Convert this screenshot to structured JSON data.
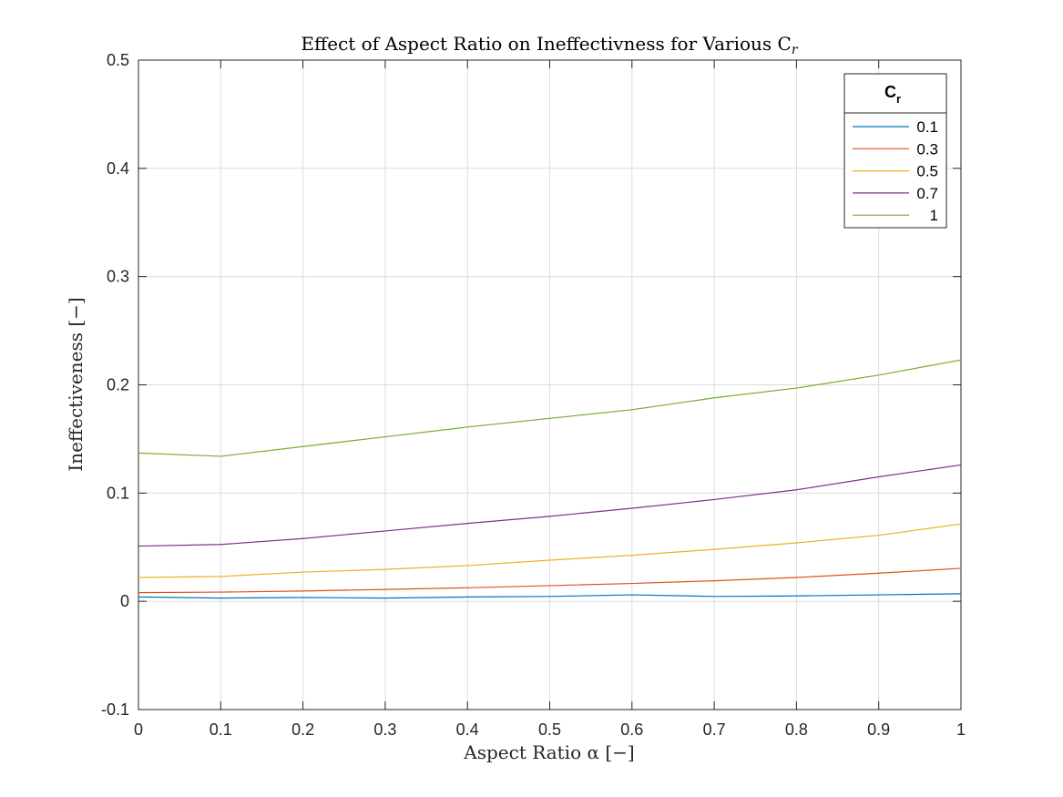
{
  "chart_data": {
    "type": "line",
    "title": "Effect of Aspect Ratio on Ineffectivness for Various C",
    "title_subscript": "r",
    "xlabel": "Aspect Ratio α [−]",
    "ylabel": "Ineffectiveness [−]",
    "xlim": [
      0,
      1
    ],
    "ylim": [
      -0.1,
      0.5
    ],
    "xticks": [
      0,
      0.1,
      0.2,
      0.3,
      0.4,
      0.5,
      0.6,
      0.7,
      0.8,
      0.9,
      1
    ],
    "xtick_labels": [
      "0",
      "0.1",
      "0.2",
      "0.3",
      "0.4",
      "0.5",
      "0.6",
      "0.7",
      "0.8",
      "0.9",
      "1"
    ],
    "yticks": [
      -0.1,
      0,
      0.1,
      0.2,
      0.3,
      0.4,
      0.5
    ],
    "ytick_labels": [
      "-0.1",
      "0",
      "0.1",
      "0.2",
      "0.3",
      "0.4",
      "0.5"
    ],
    "grid": true,
    "legend": {
      "title": "C",
      "title_subscript": "r",
      "placement": "top-right"
    },
    "x": [
      0,
      0.1,
      0.2,
      0.3,
      0.4,
      0.5,
      0.6,
      0.7,
      0.8,
      0.9,
      1
    ],
    "series": [
      {
        "name": "0.1",
        "color": "#0072BD",
        "values": [
          0.004,
          0.003,
          0.0035,
          0.003,
          0.004,
          0.0045,
          0.006,
          0.0045,
          0.005,
          0.006,
          0.007
        ]
      },
      {
        "name": "0.3",
        "color": "#D95319",
        "values": [
          0.008,
          0.0085,
          0.0095,
          0.011,
          0.0125,
          0.0145,
          0.0165,
          0.019,
          0.022,
          0.026,
          0.0305
        ]
      },
      {
        "name": "0.5",
        "color": "#EDB120",
        "values": [
          0.022,
          0.023,
          0.027,
          0.0295,
          0.033,
          0.038,
          0.0425,
          0.048,
          0.054,
          0.061,
          0.0715
        ]
      },
      {
        "name": "0.7",
        "color": "#7E2F8E",
        "values": [
          0.051,
          0.0525,
          0.058,
          0.065,
          0.072,
          0.0785,
          0.086,
          0.094,
          0.103,
          0.115,
          0.126
        ]
      },
      {
        "name": "1",
        "color": "#77AC30",
        "values": [
          0.137,
          0.134,
          0.143,
          0.152,
          0.161,
          0.169,
          0.177,
          0.188,
          0.197,
          0.209,
          0.223
        ]
      }
    ]
  }
}
